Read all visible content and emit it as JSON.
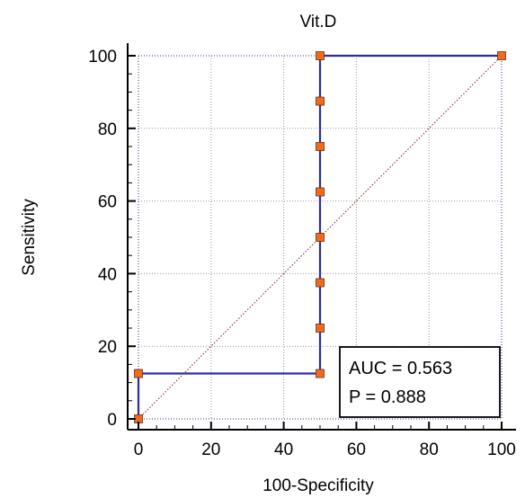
{
  "chart_data": {
    "type": "line",
    "title": "Vit.D",
    "xlabel": "100-Specificity",
    "ylabel": "Sensitivity",
    "xlim": [
      0,
      100
    ],
    "ylim": [
      0,
      100
    ],
    "xticks": [
      "0",
      "20",
      "40",
      "60",
      "80",
      "100"
    ],
    "yticks": [
      "0",
      "20",
      "40",
      "60",
      "80",
      "100"
    ],
    "grid": true,
    "series": [
      {
        "color": "#2e2e9a",
        "marker_color": "#f26b1d",
        "x": [
          0,
          0,
          50,
          50,
          50,
          50,
          50,
          50,
          50,
          50,
          100
        ],
        "y": [
          0,
          12.5,
          12.5,
          25,
          37.5,
          50,
          62.5,
          75,
          87.5,
          100,
          100
        ]
      }
    ],
    "reference_line": {
      "x": [
        0,
        100
      ],
      "y": [
        0,
        100
      ],
      "color": "#8b1a1a"
    },
    "annotations": {
      "auc": "AUC = 0.563",
      "p": "P = 0.888"
    }
  }
}
